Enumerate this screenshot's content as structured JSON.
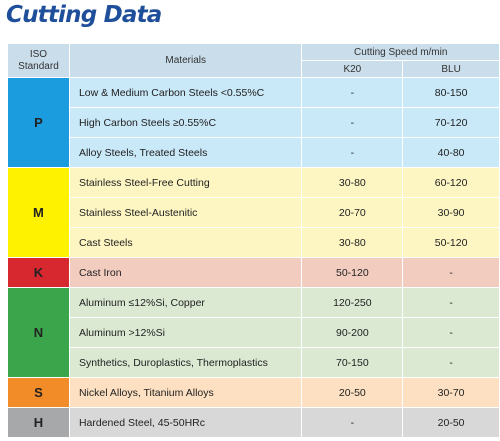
{
  "title": "Cutting Data",
  "header": {
    "iso_line1": "ISO",
    "iso_line2": "Standard",
    "materials": "Materials",
    "cutting_speed": "Cutting Speed m/min",
    "k20": "K20",
    "blu": "BLU"
  },
  "colors": {
    "P": "#1a9cdf",
    "M": "#fff200",
    "K": "#d7282f",
    "N": "#3aa54a",
    "S": "#f28c28",
    "H": "#a6a8aa",
    "P_row": "#c9e8f8",
    "M_row": "#fdf6c3",
    "K_row": "#f3ccc0",
    "N_row": "#dbe9d3",
    "S_row": "#fde0c2",
    "H_row": "#d8d8d8"
  },
  "groups": [
    {
      "iso": "P",
      "rows": [
        {
          "material": "Low & Medium Carbon Steels <0.55%C",
          "k20": "-",
          "blu": "80-150"
        },
        {
          "material": "High Carbon Steels ≥0.55%C",
          "k20": "-",
          "blu": "70-120"
        },
        {
          "material": "Alloy Steels, Treated Steels",
          "k20": "-",
          "blu": "40-80"
        }
      ]
    },
    {
      "iso": "M",
      "rows": [
        {
          "material": "Stainless Steel-Free Cutting",
          "k20": "30-80",
          "blu": "60-120"
        },
        {
          "material": "Stainless Steel-Austenitic",
          "k20": "20-70",
          "blu": "30-90"
        },
        {
          "material": "Cast Steels",
          "k20": "30-80",
          "blu": "50-120"
        }
      ]
    },
    {
      "iso": "K",
      "rows": [
        {
          "material": "Cast Iron",
          "k20": "50-120",
          "blu": "-"
        }
      ]
    },
    {
      "iso": "N",
      "rows": [
        {
          "material": "Aluminum ≤12%Si, Copper",
          "k20": "120-250",
          "blu": "-"
        },
        {
          "material": "Aluminum >12%Si",
          "k20": "90-200",
          "blu": "-"
        },
        {
          "material": "Synthetics, Duroplastics, Thermoplastics",
          "k20": "70-150",
          "blu": "-"
        }
      ]
    },
    {
      "iso": "S",
      "rows": [
        {
          "material": "Nickel Alloys, Titanium Alloys",
          "k20": "20-50",
          "blu": "30-70"
        }
      ]
    },
    {
      "iso": "H",
      "rows": [
        {
          "material": "Hardened Steel, 45-50HRc",
          "k20": "-",
          "blu": "20-50"
        }
      ]
    }
  ]
}
